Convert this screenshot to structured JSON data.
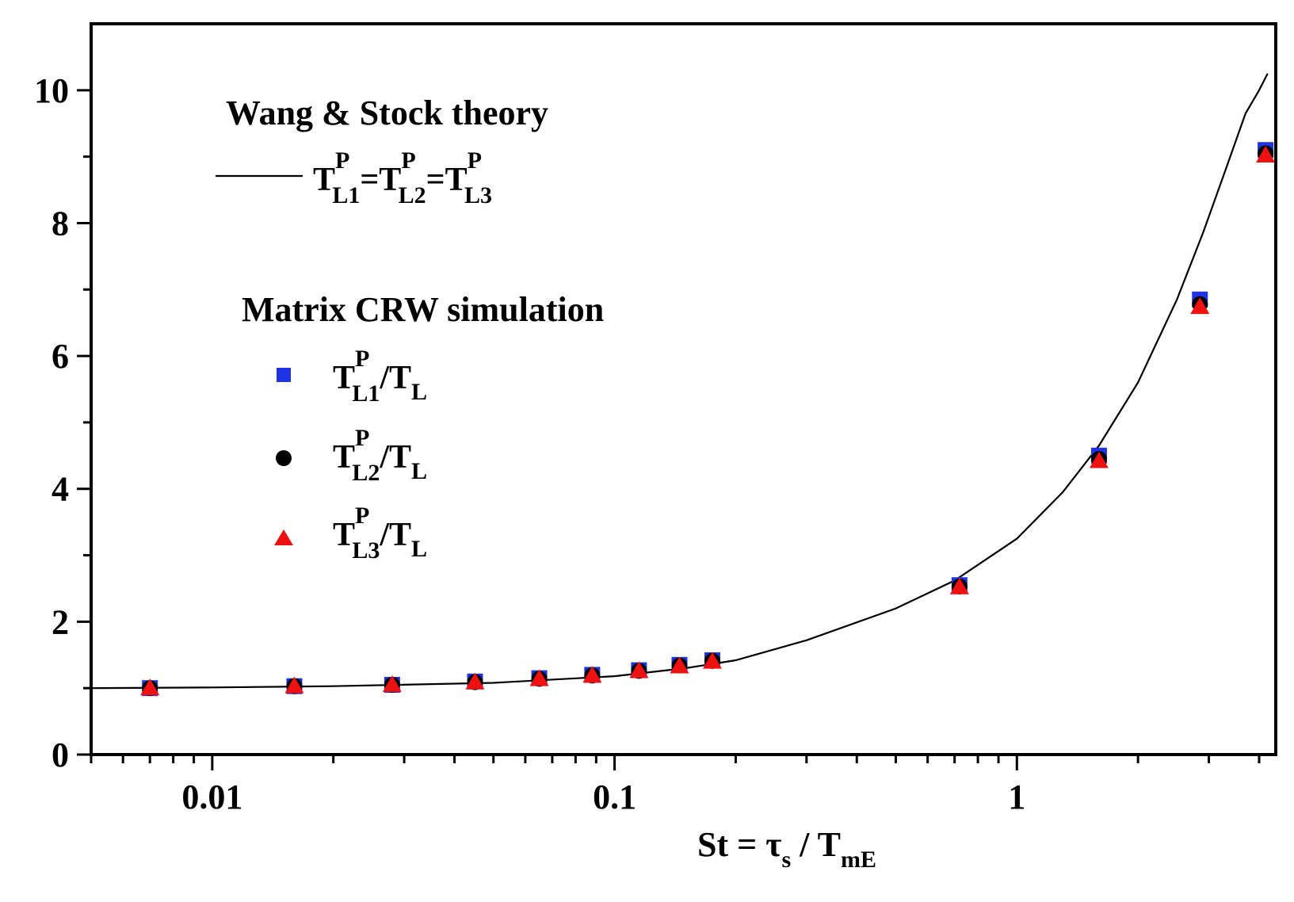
{
  "chart_data": {
    "type": "scatter",
    "title": "",
    "xlabel": {
      "main": "St = τ",
      "sub1": "s",
      "mid": " / T",
      "sub2": "mE"
    },
    "ylabel": "",
    "x_scale": "log",
    "xlim": [
      0.005,
      4.4
    ],
    "ylim": [
      0,
      11
    ],
    "x_ticks": [
      {
        "value": 0.01,
        "label": "0.01"
      },
      {
        "value": 0.1,
        "label": "0.1"
      },
      {
        "value": 1,
        "label": "1"
      }
    ],
    "y_ticks": [
      {
        "value": 0,
        "label": "0"
      },
      {
        "value": 2,
        "label": "2"
      },
      {
        "value": 4,
        "label": "4"
      },
      {
        "value": 6,
        "label": "6"
      },
      {
        "value": 8,
        "label": "8"
      },
      {
        "value": 10,
        "label": "10"
      }
    ],
    "theory": {
      "legend_title": "Wang & Stock theory",
      "label": "T_L1^P = T_L2^P = T_L3^P",
      "x": [
        0.005,
        0.01,
        0.02,
        0.05,
        0.1,
        0.15,
        0.2,
        0.3,
        0.5,
        0.7,
        1.0,
        1.3,
        1.6,
        2.0,
        2.5,
        2.9,
        3.3,
        3.7,
        4.0,
        4.2
      ],
      "y": [
        1.0,
        1.01,
        1.03,
        1.08,
        1.18,
        1.3,
        1.42,
        1.72,
        2.2,
        2.62,
        3.25,
        3.95,
        4.65,
        5.6,
        6.85,
        7.85,
        8.8,
        9.65,
        10.0,
        10.25
      ]
    },
    "simulation_title": "Matrix CRW simulation",
    "series": [
      {
        "name": "T_L1^P/T_L",
        "marker": "square",
        "color": "#1f33e6",
        "x": [
          0.007,
          0.016,
          0.028,
          0.045,
          0.065,
          0.088,
          0.115,
          0.145,
          0.175,
          0.72,
          1.6,
          2.85,
          4.15
        ],
        "y": [
          1.0,
          1.03,
          1.05,
          1.1,
          1.15,
          1.2,
          1.27,
          1.35,
          1.42,
          2.55,
          4.5,
          6.85,
          9.1
        ]
      },
      {
        "name": "T_L2^P/T_L",
        "marker": "circle",
        "color": "#000000",
        "x": [
          0.007,
          0.016,
          0.028,
          0.045,
          0.065,
          0.088,
          0.115,
          0.145,
          0.175,
          0.72,
          1.6,
          2.85,
          4.15
        ],
        "y": [
          1.0,
          1.03,
          1.05,
          1.09,
          1.14,
          1.19,
          1.26,
          1.34,
          1.41,
          2.53,
          4.45,
          6.78,
          9.05
        ]
      },
      {
        "name": "T_L3^P/T_L",
        "marker": "triangle",
        "color": "#ee1111",
        "x": [
          0.007,
          0.016,
          0.028,
          0.045,
          0.065,
          0.088,
          0.115,
          0.145,
          0.175,
          0.72,
          1.6,
          2.85,
          4.15
        ],
        "y": [
          1.0,
          1.03,
          1.05,
          1.09,
          1.14,
          1.19,
          1.26,
          1.33,
          1.4,
          2.52,
          4.42,
          6.74,
          9.02
        ]
      }
    ]
  },
  "legend": {
    "theory_title": "Wang & Stock theory",
    "sim_title": "Matrix CRW simulation",
    "t": "T",
    "p": "P",
    "l1": "L1",
    "l2": "L2",
    "l3": "L3",
    "eq": "=",
    "slash": "/",
    "l": "L"
  }
}
